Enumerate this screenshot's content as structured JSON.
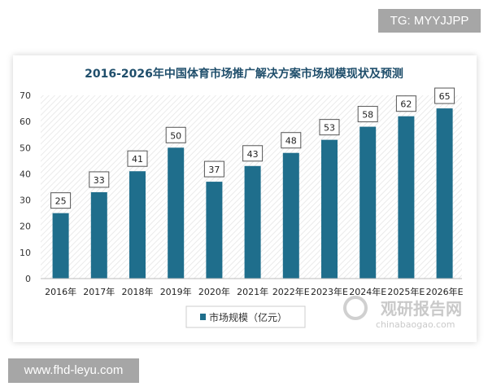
{
  "overlays": {
    "tg_label": "TG: MYYJJPP",
    "site_label": "www.fhd-leyu.com"
  },
  "watermark": {
    "cn": "观研报告网",
    "en": "chinabaogao.com"
  },
  "colors": {
    "bar": "#1f6e8c",
    "title": "#1f4e6b"
  },
  "chart_data": {
    "type": "bar",
    "title": "2016-2026年中国体育市场推广解决方案市场规模现状及预测",
    "categories": [
      "2016年",
      "2017年",
      "2018年",
      "2019年",
      "2020年",
      "2021年",
      "2022年E",
      "2023年E",
      "2024年E",
      "2025年E",
      "2026年E"
    ],
    "series": [
      {
        "name": "市场规模（亿元）",
        "values": [
          25,
          33,
          41,
          50,
          37,
          43,
          48,
          53,
          58,
          62,
          65
        ]
      }
    ],
    "ylim": [
      0,
      70
    ],
    "yticks": [
      0,
      10,
      20,
      30,
      40,
      50,
      60,
      70
    ],
    "legend": "bottom",
    "grid": false
  }
}
